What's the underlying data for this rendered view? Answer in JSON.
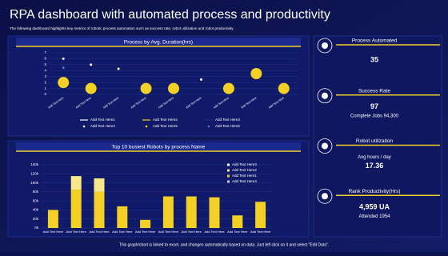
{
  "title": "RPA dashboard with automated process and productivity",
  "subtitle": "The following dashboard highlights key metrics of robotic process automation such as success rate, robot utilization and robot productivity",
  "footer": "This graph/chart is linked to excel, and changes automatically based on data. Just left click on it and select \"Edit Data\".",
  "kpis": [
    {
      "label": "Process Automated",
      "lines": [
        "35"
      ]
    },
    {
      "label": "Success Rate",
      "lines": [
        "97",
        "Complete Jobs 94,300"
      ]
    },
    {
      "label": "Robot utilization",
      "lines": [
        "Avg hours / day",
        "17.36"
      ]
    },
    {
      "label": "Rank Productivity(Hrs)",
      "lines": [
        "4,959 UA",
        "Attended 1954"
      ]
    }
  ],
  "chart_data": [
    {
      "type": "scatter",
      "title": "Process by Avg. Duration(hrs)",
      "categories": [
        "Add Text Here",
        "Add Text Here",
        "Add Text Here",
        "Add Text Here",
        "Add Text Here",
        "Add Text Here",
        "Add Text Here",
        "Add Text Here",
        "Add Text Here"
      ],
      "ylim": [
        0,
        7
      ],
      "yticks": [
        0,
        1,
        2,
        3,
        4,
        5,
        6,
        7
      ],
      "series": [
        {
          "name": "Add Text Here1",
          "color": "#ffffff",
          "mark": "line",
          "values": [
            null,
            null,
            null,
            null,
            null,
            null,
            null,
            null,
            null
          ]
        },
        {
          "name": "Add Text Here2",
          "color": "#f2d024",
          "mark": "line",
          "values": [
            null,
            null,
            null,
            null,
            null,
            null,
            null,
            null,
            null
          ]
        },
        {
          "name": "Add Text Here3",
          "color": "#1b2a8a",
          "mark": "line",
          "values": [
            null,
            null,
            null,
            null,
            null,
            null,
            null,
            null,
            null
          ]
        },
        {
          "name": "Add Text Here4",
          "color": "#ffffff",
          "mark": "dot",
          "values": [
            6,
            5,
            4.3,
            null,
            null,
            2.5,
            null,
            null,
            null
          ]
        },
        {
          "name": "Add Text Here5",
          "color": "#f2d024",
          "mark": "bubble",
          "values": [
            2,
            1,
            null,
            1,
            1,
            null,
            1,
            3.5,
            1
          ]
        },
        {
          "name": "Add Text Here6",
          "color": "#5a6bd0",
          "mark": "dot",
          "values": [
            4.5,
            null,
            null,
            null,
            null,
            null,
            null,
            null,
            null
          ]
        }
      ]
    },
    {
      "type": "bar",
      "title": "Top 10 busiest Robots by process Name",
      "categories": [
        "Add Text Here",
        "Add Text Here",
        "Add Text Here",
        "Add Text Here",
        "Add Text Here",
        "Add Text Here",
        "Add Text Here",
        "Add Text Here",
        "Add Text Here",
        "Add Text Here"
      ],
      "ylim": [
        0,
        140000
      ],
      "yticks": [
        {
          "value": 0,
          "label": "0k"
        },
        {
          "value": 20000,
          "label": "20k"
        },
        {
          "value": 40000,
          "label": "40k"
        },
        {
          "value": 60000,
          "label": "60k"
        },
        {
          "value": 80000,
          "label": "80k"
        },
        {
          "value": 100000,
          "label": "100k"
        },
        {
          "value": 120000,
          "label": "120k"
        },
        {
          "value": 140000,
          "label": "140k"
        }
      ],
      "series": [
        {
          "name": "Add Text Here1",
          "color": "#f2d024",
          "values": [
            40000,
            85000,
            80000,
            48000,
            18000,
            70000,
            70000,
            68000,
            28000,
            58000
          ]
        },
        {
          "name": "Add Text Here2",
          "color": "#f7e98a",
          "values": [
            0,
            30000,
            30000,
            0,
            0,
            0,
            0,
            0,
            0,
            0
          ]
        },
        {
          "name": "Add Text Here3",
          "color": "#ffffff",
          "values": [
            null,
            null,
            null,
            null,
            null,
            null,
            null,
            null,
            null,
            null
          ]
        },
        {
          "name": "Add Text Here4",
          "color": "#c8c8c8",
          "values": [
            null,
            null,
            null,
            null,
            null,
            null,
            null,
            null,
            null,
            null
          ]
        }
      ],
      "legend_order": [
        2,
        1,
        0,
        3
      ]
    }
  ]
}
